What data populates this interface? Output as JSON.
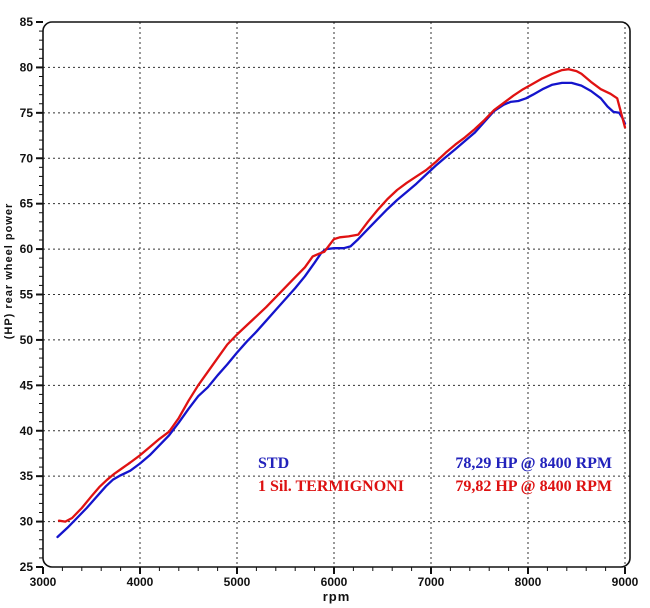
{
  "chart_data": {
    "type": "line",
    "title": "",
    "xlabel": "rpm",
    "ylabel": "(HP) rear wheel power",
    "xlim": [
      3000,
      9000
    ],
    "ylim": [
      25,
      85
    ],
    "grid": "dashed-major-both-axes",
    "legend_position": "inside-bottom-center",
    "axes": {
      "x": {
        "label": "rpm",
        "min": 3000,
        "max": 9000,
        "major_step": 1000,
        "minor_step": 200,
        "tick_labels": [
          "3000",
          "4000",
          "5000",
          "6000",
          "7000",
          "8000",
          "9000"
        ]
      },
      "y": {
        "label": "(HP) rear wheel power",
        "min": 25,
        "max": 85,
        "major_step": 5,
        "minor_step": 1,
        "tick_labels": [
          "25",
          "30",
          "35",
          "40",
          "45",
          "50",
          "55",
          "60",
          "65",
          "70",
          "75",
          "80",
          "85"
        ]
      }
    },
    "series": [
      {
        "name": "STD",
        "color": "#1414cc",
        "peak": "78,29 HP @ 8400 RPM",
        "points": [
          [
            3150,
            28.3
          ],
          [
            3250,
            29.3
          ],
          [
            3350,
            30.4
          ],
          [
            3450,
            31.5
          ],
          [
            3550,
            32.7
          ],
          [
            3650,
            33.9
          ],
          [
            3720,
            34.6
          ],
          [
            3800,
            35.1
          ],
          [
            3900,
            35.6
          ],
          [
            4000,
            36.4
          ],
          [
            4100,
            37.3
          ],
          [
            4200,
            38.4
          ],
          [
            4300,
            39.5
          ],
          [
            4400,
            40.9
          ],
          [
            4500,
            42.4
          ],
          [
            4600,
            43.8
          ],
          [
            4700,
            44.8
          ],
          [
            4800,
            46.1
          ],
          [
            4900,
            47.3
          ],
          [
            5000,
            48.6
          ],
          [
            5100,
            49.8
          ],
          [
            5200,
            50.9
          ],
          [
            5300,
            52.1
          ],
          [
            5400,
            53.3
          ],
          [
            5500,
            54.5
          ],
          [
            5600,
            55.7
          ],
          [
            5700,
            57.0
          ],
          [
            5800,
            58.5
          ],
          [
            5870,
            59.6
          ],
          [
            5920,
            60.0
          ],
          [
            6000,
            60.1
          ],
          [
            6100,
            60.1
          ],
          [
            6170,
            60.3
          ],
          [
            6250,
            61.1
          ],
          [
            6350,
            62.2
          ],
          [
            6450,
            63.3
          ],
          [
            6550,
            64.4
          ],
          [
            6650,
            65.4
          ],
          [
            6750,
            66.3
          ],
          [
            6850,
            67.2
          ],
          [
            6950,
            68.2
          ],
          [
            7050,
            69.2
          ],
          [
            7150,
            70.1
          ],
          [
            7250,
            71.0
          ],
          [
            7350,
            71.9
          ],
          [
            7450,
            72.8
          ],
          [
            7550,
            74.0
          ],
          [
            7650,
            75.2
          ],
          [
            7750,
            75.9
          ],
          [
            7820,
            76.2
          ],
          [
            7900,
            76.3
          ],
          [
            7980,
            76.6
          ],
          [
            8050,
            77.0
          ],
          [
            8150,
            77.6
          ],
          [
            8250,
            78.1
          ],
          [
            8350,
            78.3
          ],
          [
            8450,
            78.3
          ],
          [
            8550,
            78.0
          ],
          [
            8650,
            77.4
          ],
          [
            8750,
            76.6
          ],
          [
            8820,
            75.7
          ],
          [
            8880,
            75.1
          ],
          [
            8940,
            75.0
          ],
          [
            8975,
            74.4
          ],
          [
            9000,
            73.8
          ]
        ]
      },
      {
        "name": "1 Sil. TERMIGNONI",
        "color": "#e01212",
        "peak": "79,82 HP @ 8400 RPM",
        "points": [
          [
            3165,
            30.1
          ],
          [
            3230,
            30.0
          ],
          [
            3300,
            30.4
          ],
          [
            3400,
            31.5
          ],
          [
            3500,
            32.8
          ],
          [
            3580,
            33.8
          ],
          [
            3660,
            34.6
          ],
          [
            3740,
            35.3
          ],
          [
            3820,
            35.9
          ],
          [
            3900,
            36.5
          ],
          [
            4000,
            37.3
          ],
          [
            4100,
            38.2
          ],
          [
            4200,
            39.1
          ],
          [
            4300,
            39.9
          ],
          [
            4400,
            41.4
          ],
          [
            4500,
            43.3
          ],
          [
            4600,
            45.0
          ],
          [
            4700,
            46.5
          ],
          [
            4800,
            48.0
          ],
          [
            4900,
            49.5
          ],
          [
            5000,
            50.6
          ],
          [
            5100,
            51.6
          ],
          [
            5200,
            52.6
          ],
          [
            5300,
            53.6
          ],
          [
            5400,
            54.7
          ],
          [
            5500,
            55.8
          ],
          [
            5600,
            56.9
          ],
          [
            5700,
            58.0
          ],
          [
            5780,
            59.2
          ],
          [
            5850,
            59.5
          ],
          [
            5900,
            59.7
          ],
          [
            5950,
            60.4
          ],
          [
            6000,
            61.1
          ],
          [
            6060,
            61.3
          ],
          [
            6150,
            61.4
          ],
          [
            6250,
            61.6
          ],
          [
            6350,
            63.0
          ],
          [
            6450,
            64.3
          ],
          [
            6550,
            65.5
          ],
          [
            6650,
            66.5
          ],
          [
            6750,
            67.3
          ],
          [
            6850,
            68.0
          ],
          [
            6950,
            68.7
          ],
          [
            7050,
            69.6
          ],
          [
            7150,
            70.6
          ],
          [
            7250,
            71.5
          ],
          [
            7350,
            72.3
          ],
          [
            7450,
            73.2
          ],
          [
            7550,
            74.2
          ],
          [
            7650,
            75.3
          ],
          [
            7750,
            76.1
          ],
          [
            7850,
            76.9
          ],
          [
            7950,
            77.6
          ],
          [
            8050,
            78.2
          ],
          [
            8150,
            78.8
          ],
          [
            8250,
            79.3
          ],
          [
            8350,
            79.7
          ],
          [
            8420,
            79.8
          ],
          [
            8500,
            79.6
          ],
          [
            8550,
            79.3
          ],
          [
            8650,
            78.4
          ],
          [
            8750,
            77.6
          ],
          [
            8850,
            77.1
          ],
          [
            8920,
            76.6
          ],
          [
            8960,
            75.0
          ],
          [
            9000,
            73.4
          ]
        ]
      }
    ]
  },
  "legend": {
    "rows": [
      {
        "label": "STD",
        "value": "78,29 HP @ 8400 RPM",
        "color": "#2222bb"
      },
      {
        "label": "1 Sil. TERMIGNONI",
        "value": "79,82 HP @ 8400 RPM",
        "color": "#dd1111"
      }
    ]
  },
  "style_colors": {
    "frame": "#111111",
    "gridline": "#333333",
    "tick": "#111111",
    "tick_label": "#111111"
  }
}
